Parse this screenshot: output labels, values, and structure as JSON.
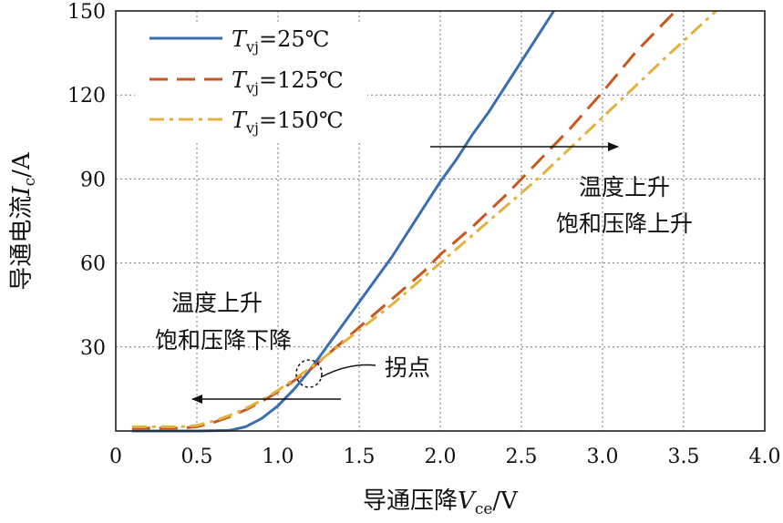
{
  "chart_data": {
    "type": "line",
    "title": "",
    "xlabel": {
      "main": "导通压降",
      "var": "V",
      "sub": "ce",
      "unit": "/V"
    },
    "ylabel": {
      "main": "导通电流",
      "var": "I",
      "sub": "c",
      "unit": "/A"
    },
    "xlim": [
      0,
      4.0
    ],
    "ylim": [
      0,
      150
    ],
    "x_ticks": [
      0,
      0.5,
      1.0,
      1.5,
      2.0,
      2.5,
      3.0,
      3.5,
      4.0
    ],
    "x_tick_labels": [
      "0",
      "0.5",
      "1.0",
      "1.5",
      "2.0",
      "2.5",
      "3.0",
      "3.5",
      "4.0"
    ],
    "y_ticks": [
      30,
      60,
      90,
      120,
      150
    ],
    "y_tick_labels": [
      "30",
      "60",
      "90",
      "120",
      "150"
    ],
    "grid": true,
    "legend_position": "top-left",
    "series": [
      {
        "name": "25°C",
        "legend": {
          "var": "T",
          "sub": "vj",
          "rest": "=25℃"
        },
        "color": "#3b6db3",
        "dash": "solid",
        "x": [
          0.1,
          0.5,
          0.7,
          0.8,
          0.9,
          1.0,
          1.1,
          1.2,
          1.3,
          1.4,
          1.5,
          1.6,
          1.7,
          1.8,
          1.9,
          2.0,
          2.1,
          2.2,
          2.3,
          2.4,
          2.5,
          2.6,
          2.7
        ],
        "y": [
          0,
          0,
          0.2,
          1.5,
          4.5,
          9,
          15,
          22,
          30,
          38,
          46,
          54,
          62,
          71,
          80,
          89,
          97,
          106,
          114,
          123,
          132,
          141,
          150
        ]
      },
      {
        "name": "125°C",
        "legend": {
          "var": "T",
          "sub": "vj",
          "rest": "=125℃"
        },
        "color": "#c8561f",
        "dash": "long-dash",
        "x": [
          0.1,
          0.4,
          0.5,
          0.6,
          0.7,
          0.8,
          0.9,
          1.0,
          1.1,
          1.2,
          1.3,
          1.4,
          1.5,
          1.6,
          1.7,
          1.8,
          1.9,
          2.0,
          2.2,
          2.4,
          2.6,
          2.8,
          3.0,
          3.2,
          3.45
        ],
        "y": [
          1,
          1,
          1.5,
          3,
          5,
          7.5,
          10.5,
          14,
          18,
          22,
          27,
          32,
          37,
          42,
          47,
          52,
          57,
          63,
          73,
          84,
          96,
          108,
          121,
          135,
          150
        ]
      },
      {
        "name": "150°C",
        "legend": {
          "var": "T",
          "sub": "vj",
          "rest": "=150℃"
        },
        "color": "#e2b23c",
        "dash": "dash-dot",
        "x": [
          0.1,
          0.4,
          0.5,
          0.6,
          0.7,
          0.8,
          0.9,
          1.0,
          1.1,
          1.2,
          1.3,
          1.4,
          1.5,
          1.6,
          1.7,
          1.8,
          1.9,
          2.0,
          2.2,
          2.4,
          2.6,
          2.8,
          3.0,
          3.2,
          3.4,
          3.7
        ],
        "y": [
          1.5,
          1.5,
          2,
          3.5,
          5.5,
          8,
          11,
          14.5,
          18.5,
          22.5,
          27,
          31.5,
          36,
          40.5,
          45,
          50,
          55,
          60,
          70,
          80,
          90,
          101,
          112,
          123,
          134,
          150
        ]
      }
    ],
    "annotations": {
      "rise_text_1": "温度上升",
      "rise_text_2": "饱和压降上升",
      "fall_text_1": "温度上升",
      "fall_text_2": "饱和压降下降",
      "inflection_text": "拐点"
    }
  }
}
